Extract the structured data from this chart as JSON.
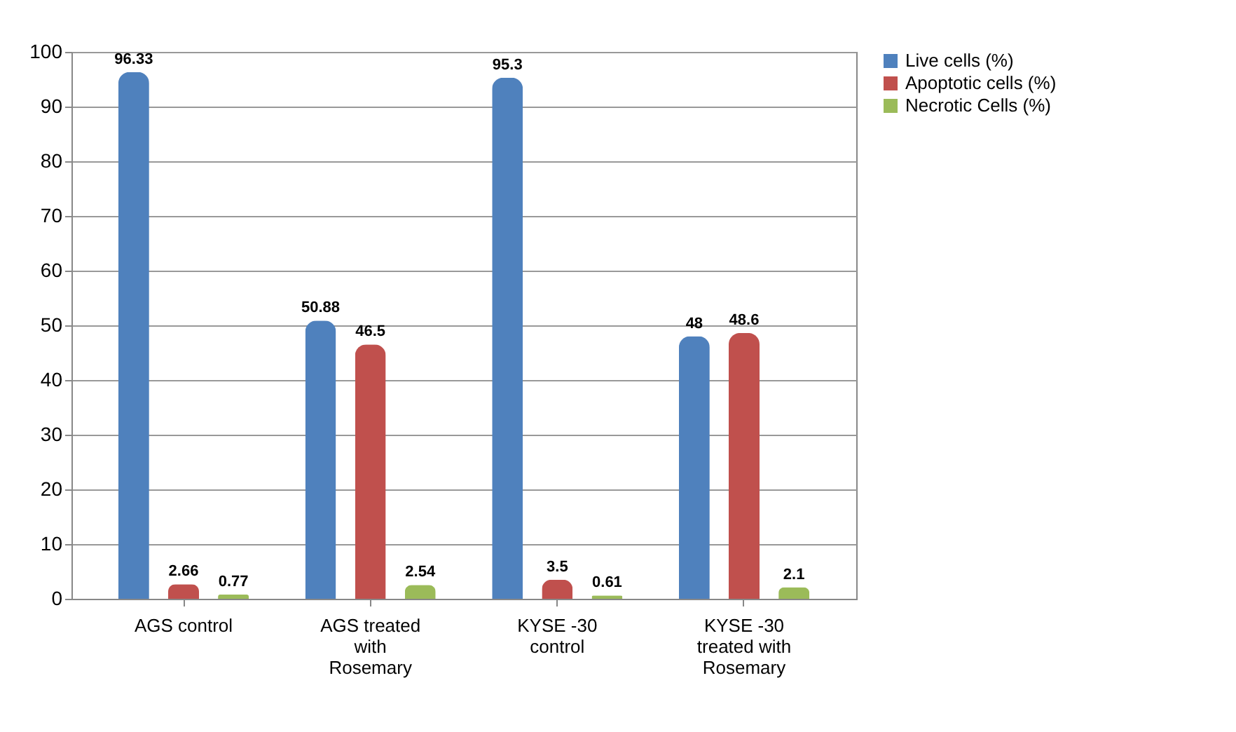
{
  "chart_data": {
    "type": "bar",
    "categories": [
      "AGS control",
      "AGS treated with Rosemary",
      "KYSE -30 control",
      "KYSE -30 treated with Rosemary"
    ],
    "series": [
      {
        "name": "Live cells (%)",
        "color": "#4f81bd",
        "values": [
          96.33,
          50.88,
          95.3,
          48
        ]
      },
      {
        "name": "Apoptotic cells (%)",
        "color": "#c0504d",
        "values": [
          2.66,
          46.5,
          3.5,
          48.6
        ]
      },
      {
        "name": "Necrotic Cells (%)",
        "color": "#9bbb59",
        "values": [
          0.77,
          2.54,
          0.61,
          2.1
        ]
      }
    ],
    "ylim": [
      0,
      100
    ],
    "yticks": [
      0,
      10,
      20,
      30,
      40,
      50,
      60,
      70,
      80,
      90,
      100
    ],
    "grid": "y",
    "legend": "right",
    "data_labels": true
  }
}
